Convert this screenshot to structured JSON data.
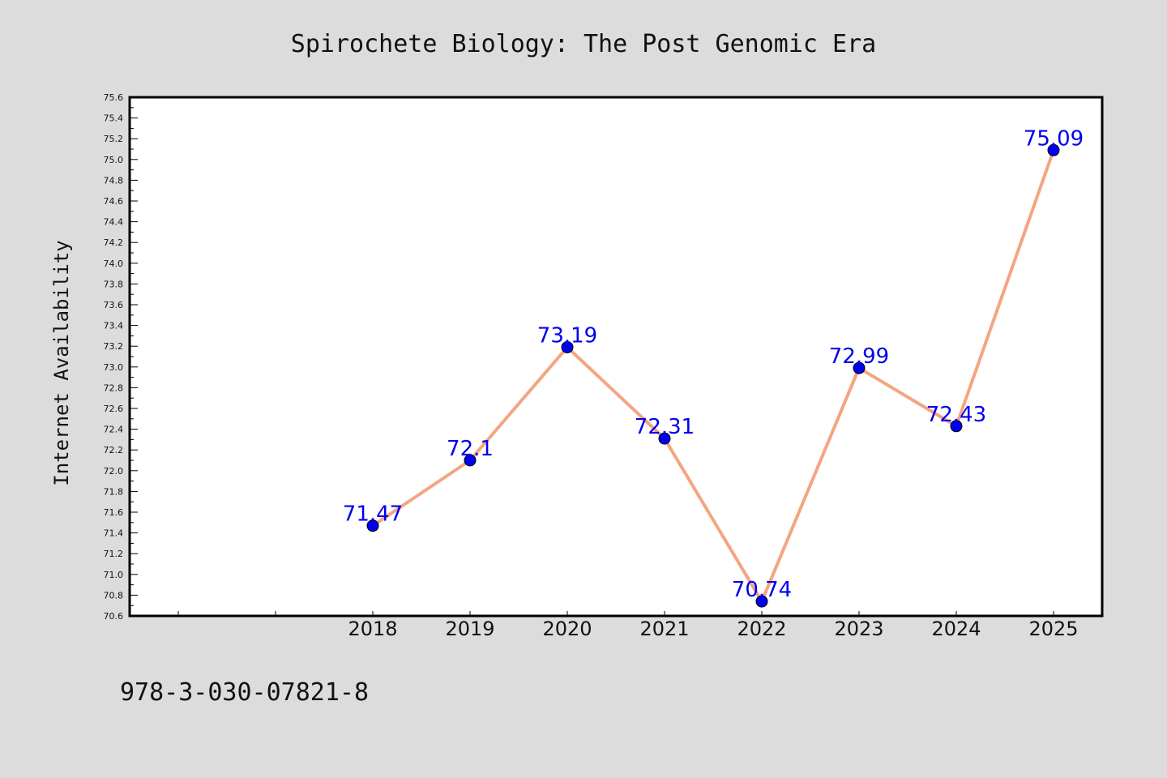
{
  "chart_data": {
    "type": "line",
    "title": "Spirochete Biology: The Post Genomic Era",
    "xlabel": "",
    "ylabel": "Internet Availability",
    "categories": [
      "2018",
      "2019",
      "2020",
      "2021",
      "2022",
      "2023",
      "2024",
      "2025"
    ],
    "series": [
      {
        "values": [
          71.47,
          72.1,
          73.19,
          72.31,
          70.74,
          72.99,
          72.43,
          75.09
        ],
        "data_labels": [
          "71.47",
          "72.1",
          "73.19",
          "72.31",
          "70.74",
          "72.99",
          "72.43",
          "75.09"
        ]
      }
    ],
    "ylim": [
      70.6,
      75.6
    ],
    "ytick_step": 0.2,
    "ytick_labels": [
      "70.6",
      "70.8",
      "71.0",
      "71.2",
      "71.4",
      "71.6",
      "71.8",
      "72.0",
      "72.2",
      "72.4",
      "72.6",
      "72.8",
      "73.0",
      "73.2",
      "73.4",
      "73.6",
      "73.8",
      "74.0",
      "74.2",
      "74.4",
      "74.6",
      "74.8",
      "75.0",
      "75.2",
      "75.4",
      "75.6"
    ],
    "x_slots_before_data": 2,
    "grid": false,
    "legend": "none",
    "colors": {
      "line": "#f4a582",
      "marker": "#0000ee",
      "data_label": "#0000ee",
      "background": "#dcdcdc",
      "plot_background": "#ffffff"
    }
  },
  "footer": {
    "isbn": "978-3-030-07821-8"
  }
}
